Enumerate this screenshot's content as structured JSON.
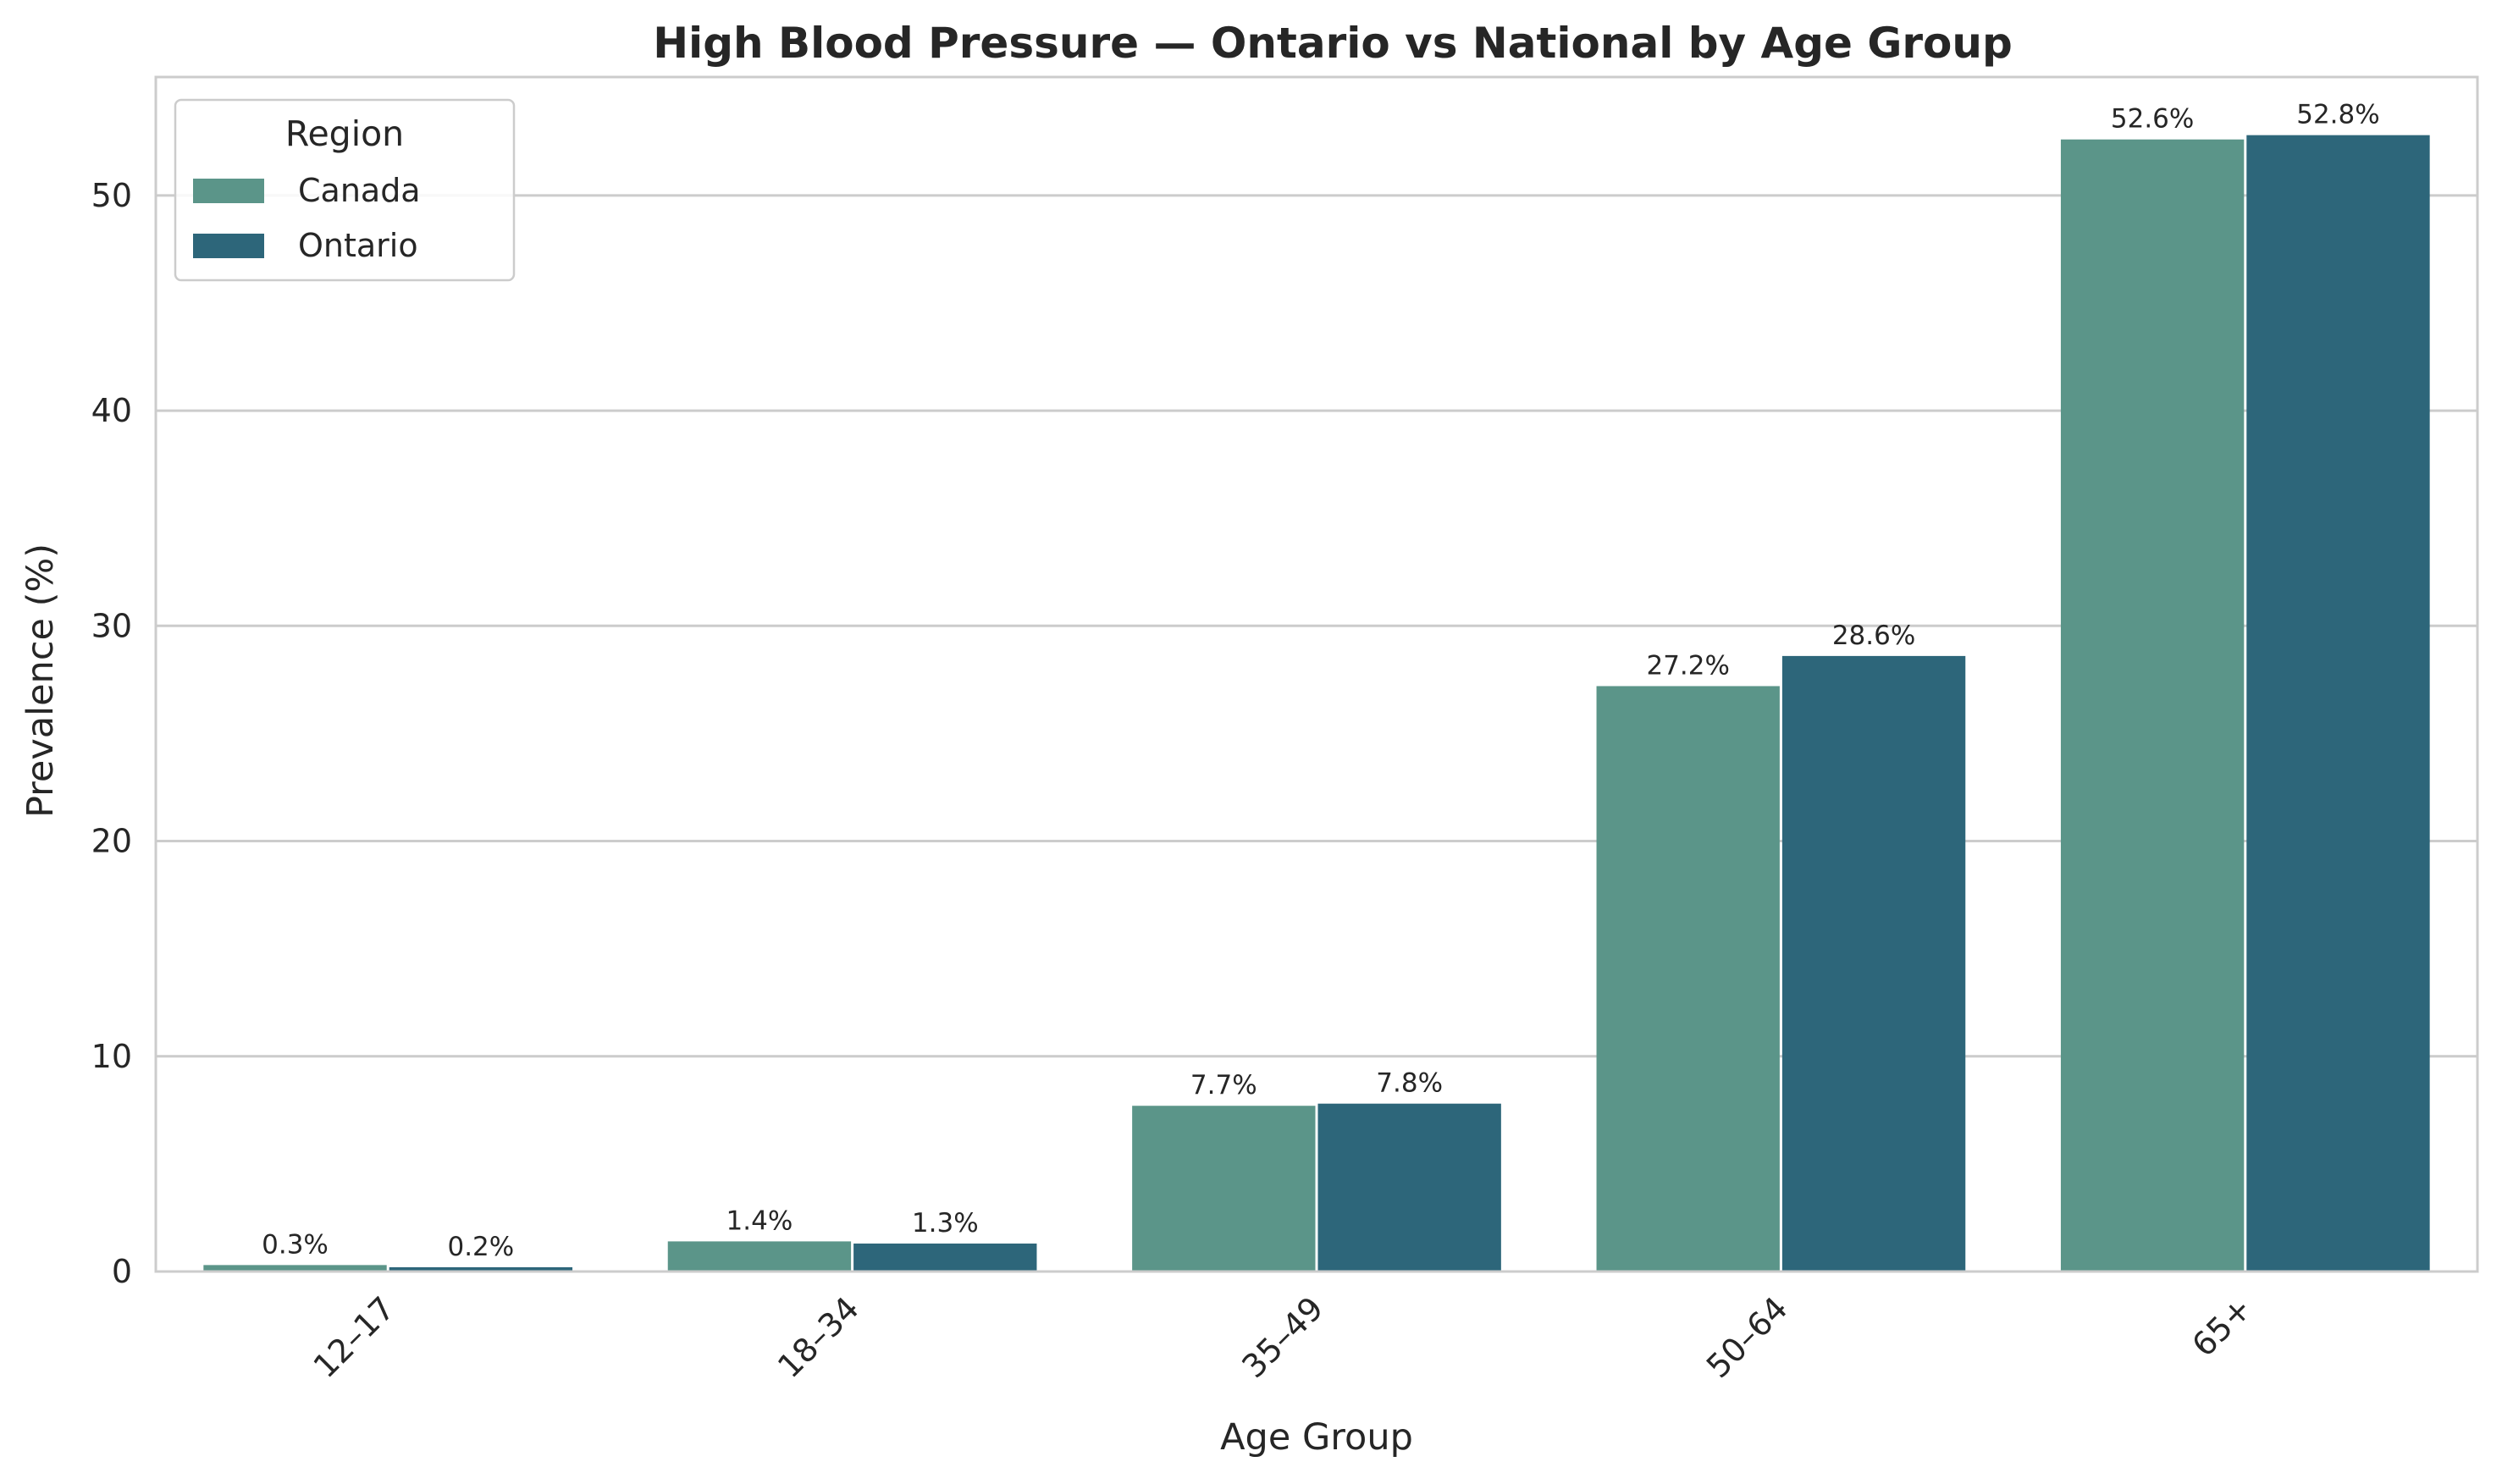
{
  "chart_data": {
    "type": "bar",
    "title": "High Blood Pressure — Ontario vs National by Age Group",
    "xlabel": "Age Group",
    "ylabel": "Prevalence (%)",
    "categories": [
      "12–17",
      "18–34",
      "35–49",
      "50–64",
      "65+"
    ],
    "series": [
      {
        "name": "Canada",
        "color": "#5b9589",
        "values": [
          0.3,
          1.4,
          7.7,
          27.2,
          52.6
        ]
      },
      {
        "name": "Ontario",
        "color": "#2d667a",
        "values": [
          0.2,
          1.3,
          7.8,
          28.6,
          52.8
        ]
      }
    ],
    "data_labels": [
      [
        "0.3%",
        "1.4%",
        "7.7%",
        "27.2%",
        "52.6%"
      ],
      [
        "0.2%",
        "1.3%",
        "7.8%",
        "28.6%",
        "52.8%"
      ]
    ],
    "ylim": [
      0,
      55.5
    ],
    "yticks": [
      0,
      10,
      20,
      30,
      40,
      50
    ],
    "grid": "y",
    "legend": {
      "title": "Region",
      "placement": "top-left"
    }
  }
}
